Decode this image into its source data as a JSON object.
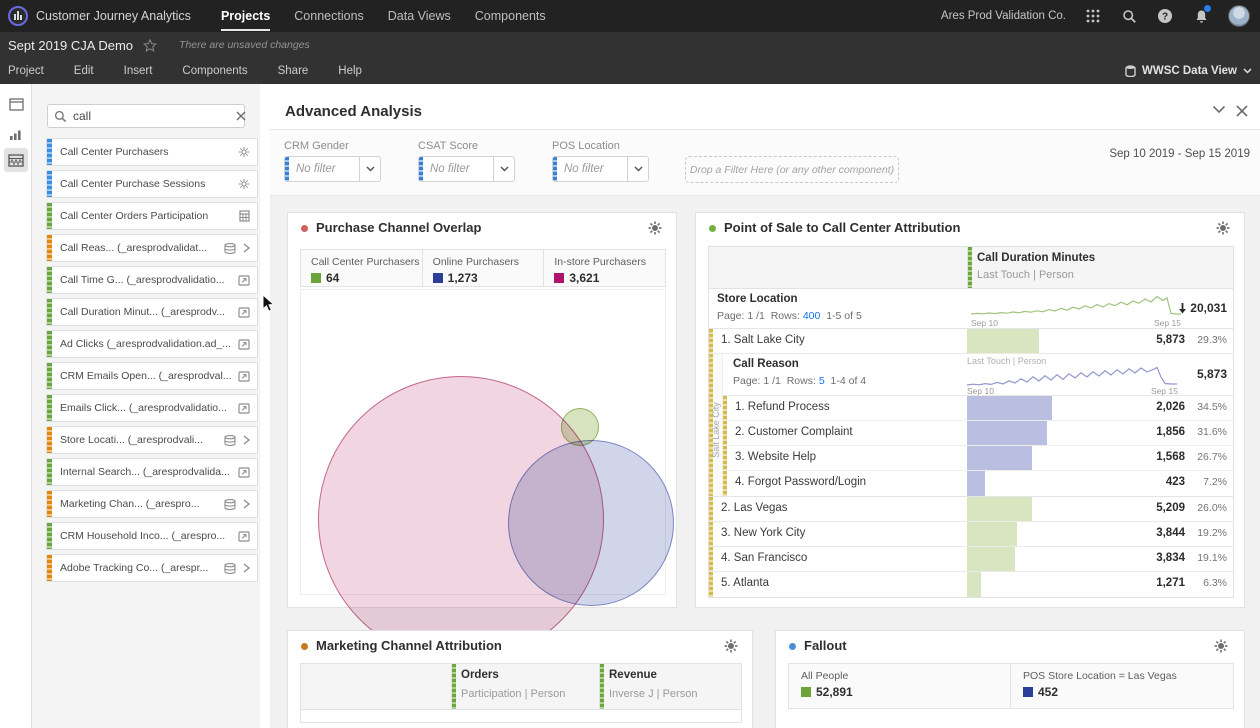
{
  "top_nav": {
    "brand": "Customer Journey Analytics",
    "items": [
      {
        "label": "Projects",
        "active": true
      },
      {
        "label": "Connections",
        "active": false
      },
      {
        "label": "Data Views",
        "active": false
      },
      {
        "label": "Components",
        "active": false
      }
    ],
    "org": "Ares Prod Validation Co.",
    "icons": [
      "app-switcher-icon",
      "search-icon",
      "help-icon",
      "notifications-bell-icon",
      "user-avatar"
    ]
  },
  "project_bar": {
    "title": "Sept 2019 CJA Demo",
    "unsaved_note": "There are unsaved changes"
  },
  "menu_bar": {
    "items": [
      "Project",
      "Edit",
      "Insert",
      "Components",
      "Share",
      "Help"
    ],
    "data_view": "WWSC Data View"
  },
  "sidebar": {
    "search_value": "call",
    "items": [
      {
        "label": "Call Center Purchasers",
        "color": "blue",
        "type": "calculated-metric"
      },
      {
        "label": "Call Center Purchase Sessions",
        "color": "blue",
        "type": "calculated-metric"
      },
      {
        "label": "Call Center Orders Participation",
        "color": "green",
        "type": "calculated-metric-calculator"
      },
      {
        "label": "Call Reas...  (_aresprodvalidat...",
        "color": "orange",
        "type": "dimension"
      },
      {
        "label": "Call Time G...  (_aresprodvalidatio...",
        "color": "green",
        "type": "schema-metric"
      },
      {
        "label": "Call Duration Minut...  (_aresprodv...",
        "color": "green",
        "type": "schema-metric"
      },
      {
        "label": "Ad Clicks  (_aresprodvalidation.ad_...",
        "color": "green",
        "type": "schema-metric"
      },
      {
        "label": "CRM Emails Open...  (_aresprodval...",
        "color": "green",
        "type": "schema-metric"
      },
      {
        "label": "Emails Click...  (_aresprodvalidatio...",
        "color": "green",
        "type": "schema-metric"
      },
      {
        "label": "Store Locati...  (_aresprodvali...",
        "color": "orange",
        "type": "dimension"
      },
      {
        "label": "Internal Search...  (_aresprodvalida...",
        "color": "green",
        "type": "schema-metric"
      },
      {
        "label": "Marketing Chan...  (_arespro...",
        "color": "orange",
        "type": "dimension"
      },
      {
        "label": "CRM Household Inco...  (_arespro...",
        "color": "green",
        "type": "schema-metric"
      },
      {
        "label": "Adobe Tracking Co...  (_arespr...",
        "color": "orange",
        "type": "dimension"
      }
    ]
  },
  "panel": {
    "title": "Advanced Analysis",
    "date_range": "Sep 10 2019 - Sep 15 2019",
    "filters": [
      {
        "label": "CRM Gender",
        "value": "No filter"
      },
      {
        "label": "CSAT Score",
        "value": "No filter"
      },
      {
        "label": "POS Location",
        "value": "No filter"
      }
    ],
    "dropzone": "Drop a Filter Here (or any other component)"
  },
  "venn": {
    "title": "Purchase Channel Overlap",
    "legend": [
      {
        "label": "Call Center Purchasers",
        "value": "64",
        "color": "#6ca439"
      },
      {
        "label": "Online Purchasers",
        "value": "1,273",
        "color": "#2d3e99"
      },
      {
        "label": "In-store Purchasers",
        "value": "3,621",
        "color": "#b0136b"
      }
    ]
  },
  "attribution": {
    "title": "Point of Sale to Call Center Attribution",
    "metric": {
      "name": "Call Duration Minutes",
      "model": "Last Touch | Person"
    },
    "outer": {
      "dimension": "Store Location",
      "page": "Page: 1 /1",
      "rows_label": "Rows:",
      "rows_value": "400",
      "range": "1-5 of 5",
      "total": "20,031",
      "spark_start": "Sep 10",
      "spark_end": "Sep 15"
    },
    "rows": [
      {
        "rank": "1.",
        "label": "Salt Lake City",
        "value": "5,873",
        "pct": "29.3%"
      },
      {
        "rank": "2.",
        "label": "Las Vegas",
        "value": "5,209",
        "pct": "26.0%"
      },
      {
        "rank": "3.",
        "label": "New York City",
        "value": "3,844",
        "pct": "19.2%"
      },
      {
        "rank": "4.",
        "label": "San Francisco",
        "value": "3,834",
        "pct": "19.1%"
      },
      {
        "rank": "5.",
        "label": "Atlanta",
        "value": "1,271",
        "pct": "6.3%"
      }
    ],
    "nested": {
      "context_label": "Salt Lake City",
      "dimension": "Call Reason",
      "page": "Page: 1 /1",
      "rows_label": "Rows:",
      "rows_value": "5",
      "range": "1-4 of 4",
      "model": "Last Touch | Person",
      "total": "5,873",
      "spark_start": "Sep 10",
      "spark_end": "Sep 15",
      "rows": [
        {
          "rank": "1.",
          "label": "Refund Process",
          "value": "2,026",
          "pct": "34.5%"
        },
        {
          "rank": "2.",
          "label": "Customer Complaint",
          "value": "1,856",
          "pct": "31.6%"
        },
        {
          "rank": "3.",
          "label": "Website Help",
          "value": "1,568",
          "pct": "26.7%"
        },
        {
          "rank": "4.",
          "label": "Forgot Password/Login",
          "value": "423",
          "pct": "7.2%"
        }
      ]
    }
  },
  "marketing": {
    "title": "Marketing Channel Attribution",
    "columns": [
      {
        "name": "Orders",
        "model": "Participation | Person"
      },
      {
        "name": "Revenue",
        "model": "Inverse J | Person"
      }
    ]
  },
  "fallout": {
    "title": "Fallout",
    "steps": [
      {
        "label": "All People",
        "value": "52,891",
        "color": "#6ca439"
      },
      {
        "label": "POS Store Location = Las Vegas",
        "value": "452",
        "color": "#2d3e99"
      }
    ]
  },
  "colors": {
    "venn_dot": "#d2605e",
    "attr_dot": "#76b043",
    "marketing_dot": "#c9791c",
    "fallout_dot": "#4a90d9"
  }
}
